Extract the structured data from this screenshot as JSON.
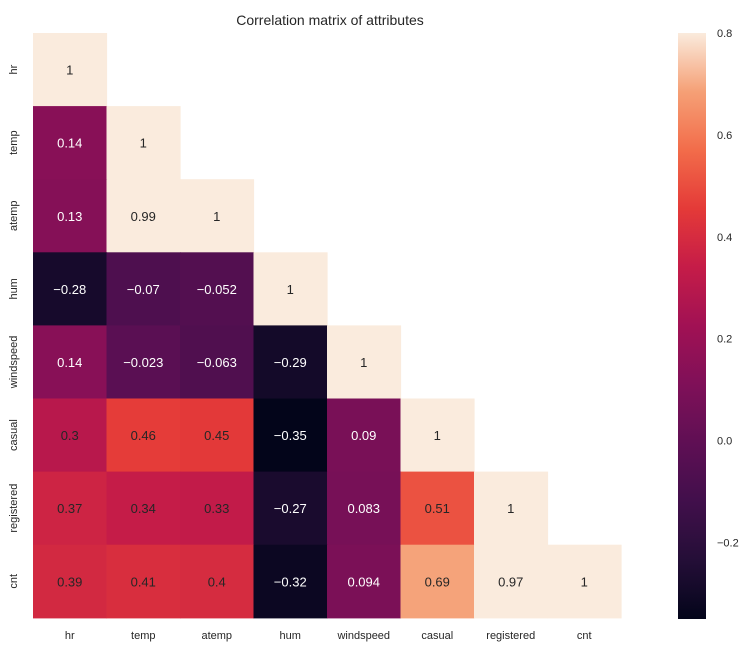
{
  "chart_data": {
    "type": "heatmap",
    "title": "Correlation matrix of attributes",
    "labels": [
      "hr",
      "temp",
      "atemp",
      "hum",
      "windspeed",
      "casual",
      "registered",
      "cnt"
    ],
    "mask": "upper-triangle",
    "matrix": [
      [
        1
      ],
      [
        0.14,
        1
      ],
      [
        0.13,
        0.99,
        1
      ],
      [
        -0.28,
        -0.07,
        -0.052,
        1
      ],
      [
        0.14,
        -0.023,
        -0.063,
        -0.29,
        1
      ],
      [
        0.3,
        0.46,
        0.45,
        -0.35,
        0.09,
        1
      ],
      [
        0.37,
        0.34,
        0.33,
        -0.27,
        0.083,
        0.51,
        1
      ],
      [
        0.39,
        0.41,
        0.4,
        -0.32,
        0.094,
        0.69,
        0.97,
        1
      ]
    ],
    "colorscale": "rocket",
    "vmin": -0.35,
    "vmax": 0.8,
    "colorbar_ticks": [
      "0.8",
      "0.6",
      "0.4",
      "0.2",
      "0.0",
      "−0.2"
    ]
  }
}
